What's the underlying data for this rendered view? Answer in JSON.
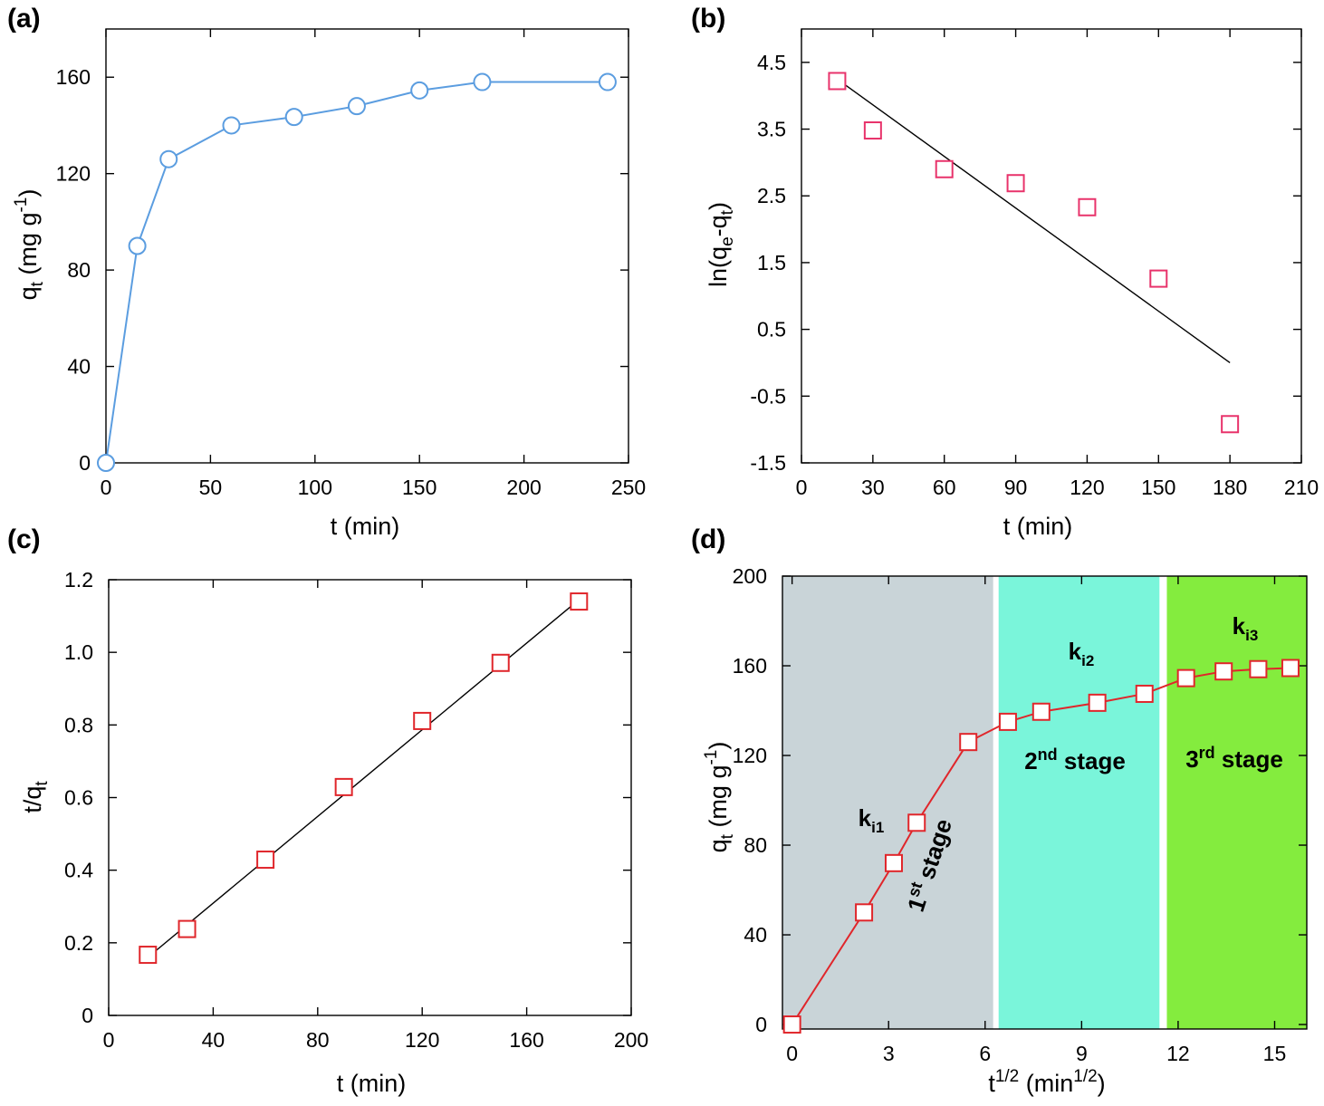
{
  "figure": {
    "panel_letters": [
      "(a)",
      "(b)",
      "(c)",
      "(d)"
    ]
  },
  "chart_data": [
    {
      "panel": "(a)",
      "type": "line",
      "xlabel": "t (min)",
      "ylabel": {
        "base": "q",
        "sub": "t",
        "rest": " (mg g",
        "sup": "-1",
        "close": ")"
      },
      "xlim": [
        0,
        250
      ],
      "ylim": [
        0,
        180
      ],
      "xticks": [
        0,
        50,
        100,
        150,
        200,
        250
      ],
      "xtick_labels": [
        "0",
        "50",
        "100",
        "150",
        "200",
        "250"
      ],
      "yticks": [
        0,
        40,
        80,
        120,
        160
      ],
      "ytick_labels": [
        "0",
        "40",
        "80",
        "120",
        "160"
      ],
      "marker": "circle",
      "color": "#5b9de0",
      "series": [
        {
          "x": [
            0,
            15,
            30,
            60,
            90,
            120,
            150,
            180,
            240
          ],
          "y": [
            0,
            90,
            126,
            140,
            143.5,
            148,
            154.5,
            158,
            158
          ]
        }
      ]
    },
    {
      "panel": "(b)",
      "type": "scatter",
      "xlabel": "t (min)",
      "ylabel": {
        "pre": "ln(q",
        "sub1": "e",
        "mid": "-q",
        "sub2": "t",
        "close": ")"
      },
      "xlim": [
        0,
        210
      ],
      "ylim": [
        -1.5,
        5
      ],
      "xticks": [
        0,
        30,
        60,
        90,
        120,
        150,
        180,
        210
      ],
      "xtick_labels": [
        "0",
        "30",
        "60",
        "90",
        "120",
        "150",
        "180",
        "210"
      ],
      "yticks": [
        -1.5,
        -0.5,
        0.5,
        1.5,
        2.5,
        3.5,
        4.5
      ],
      "ytick_labels": [
        "-1.5",
        "-0.5",
        "0.5",
        "1.5",
        "2.5",
        "3.5",
        "4.5"
      ],
      "marker": "square",
      "color": "#e8336b",
      "series": [
        {
          "x": [
            15,
            30,
            60,
            90,
            120,
            150,
            180
          ],
          "y": [
            4.22,
            3.48,
            2.9,
            2.69,
            2.33,
            1.26,
            -0.92
          ]
        }
      ],
      "fit_line": {
        "x": [
          15,
          180
        ],
        "y": [
          4.25,
          0
        ]
      }
    },
    {
      "panel": "(c)",
      "type": "scatter",
      "xlabel": "t (min)",
      "ylabel": {
        "pre": "t/q",
        "sub": "t"
      },
      "xlim": [
        0,
        200
      ],
      "ylim": [
        0,
        1.2
      ],
      "xticks": [
        0,
        40,
        80,
        120,
        160,
        200
      ],
      "xtick_labels": [
        "0",
        "40",
        "80",
        "120",
        "160",
        "200"
      ],
      "yticks": [
        0,
        0.2,
        0.4,
        0.6,
        0.8,
        1.0,
        1.2
      ],
      "ytick_labels": [
        "0",
        "0.2",
        "0.4",
        "0.6",
        "0.8",
        "1.0",
        "1.2"
      ],
      "marker": "square",
      "color": "#e0262b",
      "series": [
        {
          "x": [
            15,
            30,
            60,
            90,
            120,
            150,
            180
          ],
          "y": [
            0.167,
            0.238,
            0.429,
            0.629,
            0.811,
            0.971,
            1.14
          ]
        }
      ],
      "fit_line": {
        "x": [
          15,
          180
        ],
        "y": [
          0.16,
          1.145
        ]
      }
    },
    {
      "panel": "(d)",
      "type": "line",
      "xlabel": {
        "pre": "t",
        "sup": "1/2",
        "mid": " (min",
        "sup2": "1/2",
        "close": ")"
      },
      "ylabel": {
        "base": "q",
        "sub": "t",
        "rest": " (mg g",
        "sup": "-1",
        "close": ")"
      },
      "xlim": [
        -0.3,
        16
      ],
      "ylim": [
        -2,
        200
      ],
      "xticks": [
        0,
        3,
        6,
        9,
        12,
        15
      ],
      "xtick_labels": [
        "0",
        "3",
        "6",
        "9",
        "12",
        "15"
      ],
      "yticks": [
        0,
        40,
        80,
        120,
        160,
        200
      ],
      "ytick_labels": [
        "0",
        "40",
        "80",
        "120",
        "160",
        "200"
      ],
      "marker": "square",
      "color": "#e0262b",
      "series": [
        {
          "x": [
            0,
            2.236,
            3.162,
            3.873,
            5.477,
            6.708,
            7.746,
            9.487,
            10.954,
            12.247,
            13.416,
            14.491,
            15.492
          ],
          "y": [
            0,
            50,
            72,
            90,
            126,
            135,
            139.5,
            143.5,
            147.5,
            154.5,
            157.5,
            158.5,
            159
          ]
        }
      ],
      "stages": [
        {
          "x0": -0.3,
          "x1": 6.25,
          "color": "#c9d4d8",
          "label_pre": "1",
          "label_sup": "st",
          "label_post": " stage",
          "k_base": "k",
          "k_sub": "i1"
        },
        {
          "x0": 6.42,
          "x1": 11.42,
          "color": "#7af5da",
          "label_pre": "2",
          "label_sup": "nd",
          "label_post": " stage",
          "k_base": "k",
          "k_sub": "i2"
        },
        {
          "x0": 11.65,
          "x1": 16,
          "color": "#84ec3e",
          "label_pre": "3",
          "label_sup": "rd",
          "label_post": " stage",
          "k_base": "k",
          "k_sub": "i3"
        }
      ]
    }
  ]
}
